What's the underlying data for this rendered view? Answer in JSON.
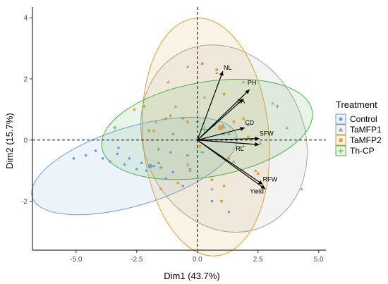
{
  "chart_data": {
    "type": "scatter",
    "subtype": "pca-biplot",
    "title": "",
    "xlabel": "Dim1 (43.7%)",
    "ylabel": "Dim2 (15.7%)",
    "xlim": [
      -6.8,
      5.3
    ],
    "ylim": [
      -3.6,
      4.35
    ],
    "xticks": [
      -5.0,
      -2.5,
      0.0,
      2.5,
      5.0
    ],
    "xtick_labels": [
      "-5.0",
      "-2.5",
      "0.0",
      "2.5",
      "5.0"
    ],
    "yticks": [
      -2,
      0,
      2,
      4
    ],
    "ytick_labels": [
      "-2",
      "0",
      "2",
      "4"
    ],
    "grid": false,
    "reference_lines": {
      "x": 0,
      "y": 0,
      "style": "dashed"
    },
    "legend": {
      "title": "Treatment",
      "placement": "right"
    },
    "series": [
      {
        "name": "Control",
        "marker": "circle",
        "color": "#6e9fd8",
        "centroid": [
          -1.95,
          -0.85
        ],
        "ellipse": {
          "center": [
            -2.6,
            -0.85
          ],
          "rx": 4.4,
          "ry": 1.28,
          "angle": -17
        },
        "points": [
          [
            -5.1,
            -0.6
          ],
          [
            -4.6,
            -0.5
          ],
          [
            -4.2,
            -0.35
          ],
          [
            -3.9,
            -0.6
          ],
          [
            -3.6,
            -0.7
          ],
          [
            -3.3,
            -0.45
          ],
          [
            -3.0,
            -0.8
          ],
          [
            -2.8,
            -0.6
          ],
          [
            -2.5,
            -0.95
          ],
          [
            -2.3,
            -0.75
          ],
          [
            -2.1,
            -1.0
          ],
          [
            -1.8,
            -0.85
          ],
          [
            -1.6,
            -0.75
          ],
          [
            -1.3,
            -1.25
          ],
          [
            -1.0,
            -1.05
          ],
          [
            -0.6,
            -1.5
          ],
          [
            0.6,
            -2.0
          ],
          [
            1.3,
            -2.35
          ],
          [
            -1.1,
            -0.4
          ],
          [
            -0.3,
            -0.95
          ],
          [
            -3.25,
            -0.25
          ]
        ]
      },
      {
        "name": "TaMFP1",
        "marker": "triangle",
        "color": "#a3a3a3",
        "centroid": [
          1.05,
          0.45
        ],
        "ellipse": {
          "center": [
            1.1,
            0.05
          ],
          "rx": 3.3,
          "ry": 3.15,
          "angle": -25
        },
        "points": [
          [
            -0.4,
            2.4
          ],
          [
            -1.2,
            1.9
          ],
          [
            0.3,
            1.4
          ],
          [
            2.1,
            0.5
          ],
          [
            3.1,
            1.2
          ],
          [
            4.3,
            -1.6
          ],
          [
            2.6,
            -0.1
          ],
          [
            1.1,
            0.2
          ],
          [
            -0.4,
            -0.8
          ],
          [
            0.6,
            -1.6
          ],
          [
            1.5,
            -0.7
          ],
          [
            3.7,
            0.4
          ],
          [
            1.9,
            1.9
          ],
          [
            -1.7,
            0.6
          ],
          [
            0.8,
            2.2
          ],
          [
            2.4,
            -1.0
          ],
          [
            -0.9,
            1.1
          ]
        ]
      },
      {
        "name": "TaMFP2",
        "marker": "square",
        "color": "#e1a03b",
        "centroid": [
          0.95,
          0.4
        ],
        "ellipse": {
          "center": [
            0.35,
            0.1
          ],
          "rx": 2.6,
          "ry": 3.9,
          "angle": -5
        },
        "points": [
          [
            -2.6,
            1.0
          ],
          [
            -1.1,
            0.8
          ],
          [
            0.2,
            2.5
          ],
          [
            1.1,
            1.5
          ],
          [
            1.9,
            0.7
          ],
          [
            2.1,
            0.1
          ],
          [
            1.3,
            -0.6
          ],
          [
            0.6,
            -1.3
          ],
          [
            -0.8,
            -1.4
          ],
          [
            -1.5,
            -1.6
          ],
          [
            0.8,
            2.3
          ],
          [
            1.5,
            0.6
          ],
          [
            0.1,
            -0.2
          ],
          [
            -0.3,
            -1.0
          ],
          [
            1.0,
            -2.0
          ],
          [
            2.5,
            -1.1
          ],
          [
            -1.8,
            0.3
          ],
          [
            -0.4,
            0.6
          ],
          [
            1.1,
            -1.5
          ]
        ]
      },
      {
        "name": "Th-CP",
        "marker": "plus",
        "color": "#4daf4a",
        "centroid": [
          0.3,
          0.35
        ],
        "ellipse": {
          "center": [
            0.4,
            0.35
          ],
          "rx": 4.4,
          "ry": 1.55,
          "angle": -10
        },
        "points": [
          [
            -2.0,
            0.3
          ],
          [
            -1.3,
            0.7
          ],
          [
            -0.6,
            0.7
          ],
          [
            0.0,
            0.6
          ],
          [
            0.7,
            0.5
          ],
          [
            1.3,
            0.2
          ],
          [
            -1.6,
            -0.3
          ],
          [
            -0.4,
            -0.5
          ],
          [
            0.9,
            -0.5
          ],
          [
            3.3,
            1.1
          ],
          [
            -2.2,
            1.1
          ],
          [
            -3.4,
            0.4
          ],
          [
            1.9,
            -0.2
          ],
          [
            -1.5,
            -0.9
          ],
          [
            0.2,
            -0.4
          ],
          [
            -1.0,
            0.2
          ]
        ]
      }
    ],
    "loadings": [
      {
        "label": "NL",
        "x": 1.05,
        "y": 2.25
      },
      {
        "label": "PH",
        "x": 2.15,
        "y": 1.65
      },
      {
        "label": "LA",
        "x": 1.9,
        "y": 1.35
      },
      {
        "label": "CD",
        "x": 1.95,
        "y": 0.4
      },
      {
        "label": "SFW",
        "x": 2.55,
        "y": 0.05
      },
      {
        "label": "RL",
        "x": 2.55,
        "y": -0.15
      },
      {
        "label": "RFW",
        "x": 2.8,
        "y": -1.6
      },
      {
        "label": "Yield",
        "x": 2.7,
        "y": -1.45
      }
    ],
    "loading_label_offsets_note": "",
    "loading_label_positions": [
      {
        "label": "NL",
        "x": 1.25,
        "y": 2.3
      },
      {
        "label": "PH",
        "x": 2.25,
        "y": 1.8
      },
      {
        "label": "LA",
        "x": 1.8,
        "y": 1.2
      },
      {
        "label": "CD",
        "x": 2.15,
        "y": 0.5
      },
      {
        "label": "SFW",
        "x": 2.85,
        "y": 0.15
      },
      {
        "label": "RL",
        "x": 1.75,
        "y": -0.35
      },
      {
        "label": "RFW",
        "x": 3.0,
        "y": -1.35
      },
      {
        "label": "Yield",
        "x": 2.45,
        "y": -1.75
      }
    ]
  }
}
